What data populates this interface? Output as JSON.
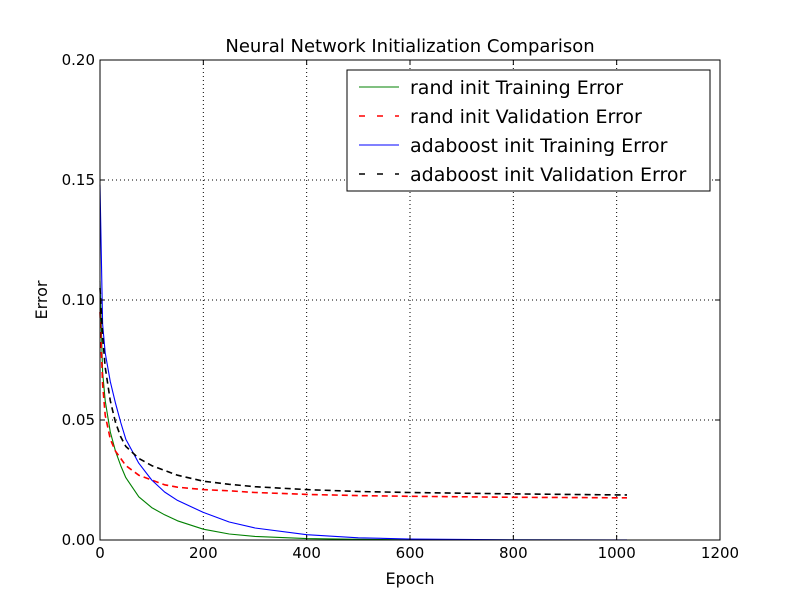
{
  "chart_data": {
    "type": "line",
    "title": "Neural Network Initialization Comparison",
    "xlabel": "Epoch",
    "ylabel": "Error",
    "xlim": [
      0,
      1200
    ],
    "ylim": [
      0,
      0.2
    ],
    "xticks": [
      0,
      200,
      400,
      600,
      800,
      1000,
      1200
    ],
    "xtick_labels": [
      "0",
      "200",
      "400",
      "600",
      "800",
      "1000",
      "1200"
    ],
    "yticks": [
      0,
      0.05,
      0.1,
      0.15,
      0.2
    ],
    "ytick_labels": [
      "0.00",
      "0.05",
      "0.10",
      "0.15",
      "0.20"
    ],
    "grid": true,
    "legend_position": "top-right",
    "series": [
      {
        "name": "rand init Training Error",
        "color": "#008000",
        "dash": "solid",
        "x": [
          0,
          5,
          10,
          20,
          30,
          40,
          50,
          75,
          100,
          125,
          150,
          200,
          250,
          300,
          400,
          500,
          600,
          800,
          1000,
          1020
        ],
        "y": [
          0.108,
          0.07,
          0.058,
          0.045,
          0.037,
          0.031,
          0.026,
          0.018,
          0.0135,
          0.0105,
          0.008,
          0.0045,
          0.0025,
          0.0015,
          0.0006,
          0.0003,
          0.0001,
          5e-05,
          2e-05,
          2e-05
        ]
      },
      {
        "name": "rand init Validation Error",
        "color": "#ff0000",
        "dash": "dashed",
        "x": [
          0,
          5,
          10,
          20,
          30,
          40,
          50,
          75,
          100,
          125,
          150,
          200,
          250,
          300,
          400,
          500,
          600,
          700,
          800,
          900,
          1000,
          1020
        ],
        "y": [
          0.095,
          0.065,
          0.052,
          0.042,
          0.037,
          0.034,
          0.031,
          0.027,
          0.025,
          0.023,
          0.022,
          0.021,
          0.0205,
          0.0198,
          0.019,
          0.0185,
          0.0182,
          0.018,
          0.0178,
          0.0177,
          0.0176,
          0.0176
        ]
      },
      {
        "name": "adaboost init Training Error",
        "color": "#0000ff",
        "dash": "solid",
        "x": [
          0,
          5,
          10,
          20,
          30,
          40,
          50,
          75,
          100,
          125,
          150,
          200,
          250,
          300,
          400,
          500,
          600,
          800,
          1000,
          1020
        ],
        "y": [
          0.148,
          0.09,
          0.078,
          0.066,
          0.057,
          0.049,
          0.042,
          0.032,
          0.025,
          0.02,
          0.0165,
          0.0115,
          0.0075,
          0.005,
          0.0022,
          0.0009,
          0.0004,
          0.0001,
          5e-05,
          5e-05
        ]
      },
      {
        "name": "adaboost init Validation Error",
        "color": "#000000",
        "dash": "dashed",
        "x": [
          0,
          5,
          10,
          20,
          30,
          40,
          50,
          75,
          100,
          125,
          150,
          200,
          250,
          300,
          400,
          500,
          600,
          700,
          800,
          900,
          1000,
          1020
        ],
        "y": [
          0.105,
          0.085,
          0.072,
          0.058,
          0.049,
          0.043,
          0.039,
          0.034,
          0.031,
          0.029,
          0.027,
          0.0245,
          0.0232,
          0.0222,
          0.021,
          0.0202,
          0.0198,
          0.0195,
          0.0192,
          0.019,
          0.0188,
          0.0188
        ]
      }
    ]
  }
}
